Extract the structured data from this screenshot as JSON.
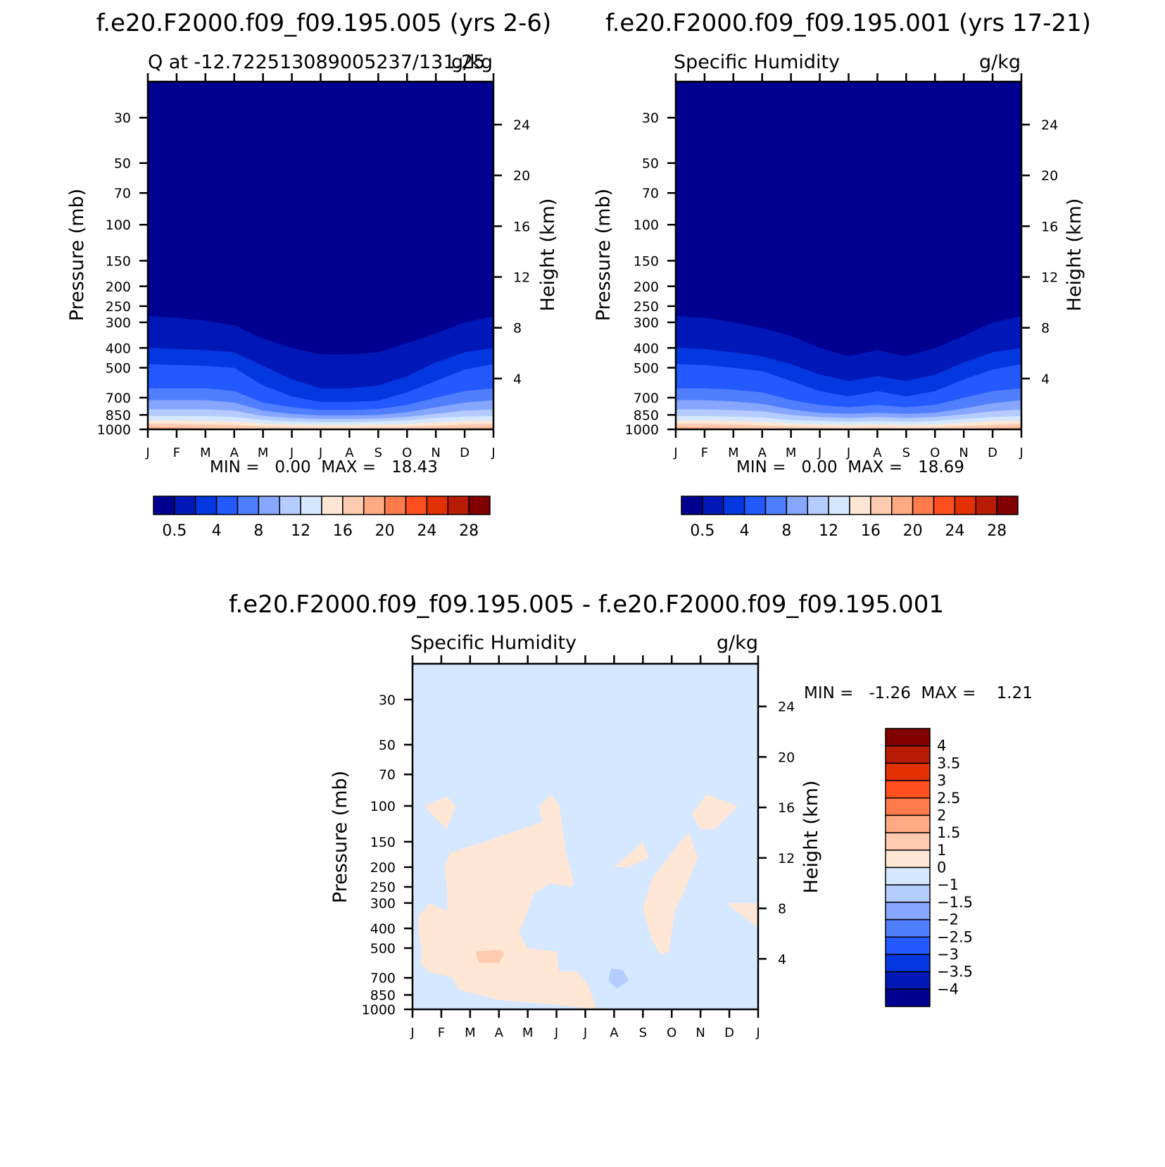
{
  "colors": {
    "q_levels": [
      "#000091",
      "#0018b8",
      "#0337e0",
      "#2359ff",
      "#4f7fff",
      "#86a6ff",
      "#b4ccff",
      "#d5e8ff",
      "#ffe6d5",
      "#ffcbb0",
      "#ffaa82",
      "#ff7b4c",
      "#ff4f1e",
      "#e23000",
      "#b91c05",
      "#800000"
    ],
    "diff_levels": [
      "#000091",
      "#0018b8",
      "#0337e0",
      "#2359ff",
      "#4f7fff",
      "#86a6ff",
      "#b4ccff",
      "#d5e8ff",
      "#ffe6d5",
      "#ffcbb0",
      "#ffaa82",
      "#ff7b4c",
      "#ff4f1e",
      "#e23000",
      "#b91c05",
      "#800000"
    ]
  },
  "chart_data": [
    {
      "type": "heatmap",
      "title": "f.e20.F2000.f09_f09.195.005 (yrs 2-6)",
      "left_label": "Q at -12.722513089005237/131.25",
      "right_label": "g/kg",
      "xlabel": "",
      "ylabel": "Pressure (mb)",
      "y2label": "Height (km)",
      "x_ticks": [
        "J",
        "F",
        "M",
        "A",
        "M",
        "J",
        "J",
        "A",
        "S",
        "O",
        "N",
        "D",
        "J"
      ],
      "y_ticks": [
        30,
        50,
        70,
        100,
        150,
        200,
        250,
        300,
        400,
        500,
        700,
        850,
        1000
      ],
      "y2_ticks": [
        24,
        20,
        16,
        12,
        8,
        4
      ],
      "ylim": [
        20,
        1000
      ],
      "y_scale": "log",
      "contour_levels": [
        0.5,
        4,
        8,
        12,
        16,
        20,
        24,
        28
      ],
      "colorbar_labels": [
        "0.5",
        "4",
        "8",
        "12",
        "16",
        "20",
        "24",
        "28"
      ],
      "stats": "MIN =   0.00  MAX =   18.43",
      "boundaries_pressure": [
        [
          280,
          285,
          295,
          310,
          360,
          400,
          430,
          430,
          420,
          380,
          340,
          300,
          280
        ],
        [
          400,
          405,
          410,
          420,
          490,
          570,
          630,
          630,
          610,
          550,
          470,
          420,
          400
        ],
        [
          480,
          485,
          490,
          500,
          610,
          690,
          735,
          735,
          725,
          660,
          580,
          510,
          480
        ],
        [
          630,
          630,
          630,
          650,
          740,
          780,
          805,
          805,
          795,
          760,
          700,
          650,
          630
        ],
        [
          720,
          720,
          720,
          740,
          810,
          840,
          855,
          855,
          850,
          825,
          780,
          740,
          720
        ],
        [
          800,
          800,
          800,
          810,
          860,
          880,
          890,
          890,
          885,
          870,
          840,
          810,
          800
        ],
        [
          860,
          860,
          860,
          870,
          900,
          915,
          920,
          920,
          915,
          905,
          880,
          865,
          860
        ],
        [
          905,
          905,
          910,
          915,
          935,
          945,
          950,
          950,
          945,
          940,
          925,
          910,
          905
        ],
        [
          940,
          940,
          945,
          950,
          970,
          980,
          985,
          985,
          980,
          975,
          960,
          945,
          940
        ],
        [
          975,
          978,
          985,
          990,
          1000,
          1000,
          1000,
          1000,
          1000,
          1000,
          995,
          985,
          975
        ]
      ]
    },
    {
      "type": "heatmap",
      "title": "f.e20.F2000.f09_f09.195.001 (yrs 17-21)",
      "left_label": "Specific Humidity",
      "right_label": "g/kg",
      "xlabel": "",
      "ylabel": "Pressure (mb)",
      "y2label": "Height (km)",
      "x_ticks": [
        "J",
        "F",
        "M",
        "A",
        "M",
        "J",
        "J",
        "A",
        "S",
        "O",
        "N",
        "D",
        "J"
      ],
      "y_ticks": [
        30,
        50,
        70,
        100,
        150,
        200,
        250,
        300,
        400,
        500,
        700,
        850,
        1000
      ],
      "y2_ticks": [
        24,
        20,
        16,
        12,
        8,
        4
      ],
      "ylim": [
        20,
        1000
      ],
      "y_scale": "log",
      "contour_levels": [
        0.5,
        4,
        8,
        12,
        16,
        20,
        24,
        28
      ],
      "colorbar_labels": [
        "0.5",
        "4",
        "8",
        "12",
        "16",
        "20",
        "24",
        "28"
      ],
      "stats": "MIN =   0.00  MAX =   18.69",
      "boundaries_pressure": [
        [
          280,
          285,
          300,
          320,
          350,
          400,
          440,
          410,
          440,
          400,
          350,
          300,
          280
        ],
        [
          400,
          405,
          420,
          440,
          480,
          540,
          580,
          550,
          580,
          540,
          470,
          420,
          400
        ],
        [
          480,
          485,
          500,
          520,
          580,
          650,
          690,
          650,
          690,
          650,
          570,
          510,
          480
        ],
        [
          630,
          630,
          640,
          660,
          720,
          760,
          780,
          760,
          780,
          760,
          700,
          650,
          630
        ],
        [
          720,
          720,
          730,
          750,
          800,
          830,
          840,
          830,
          840,
          830,
          790,
          745,
          720
        ],
        [
          800,
          800,
          805,
          815,
          850,
          870,
          880,
          870,
          880,
          870,
          845,
          815,
          800
        ],
        [
          860,
          860,
          865,
          875,
          900,
          910,
          915,
          910,
          915,
          910,
          890,
          870,
          860
        ],
        [
          905,
          905,
          910,
          920,
          935,
          945,
          950,
          945,
          950,
          945,
          930,
          912,
          905
        ],
        [
          940,
          940,
          945,
          955,
          970,
          978,
          985,
          978,
          985,
          978,
          965,
          948,
          940
        ],
        [
          975,
          978,
          985,
          992,
          1000,
          1000,
          1000,
          1000,
          1000,
          1000,
          995,
          985,
          975
        ]
      ]
    },
    {
      "type": "heatmap",
      "title": "f.e20.F2000.f09_f09.195.005 - f.e20.F2000.f09_f09.195.001",
      "left_label": "Specific Humidity",
      "right_label": "g/kg",
      "xlabel": "",
      "ylabel": "Pressure (mb)",
      "y2label": "Height (km)",
      "x_ticks": [
        "J",
        "F",
        "M",
        "A",
        "M",
        "J",
        "J",
        "A",
        "S",
        "O",
        "N",
        "D",
        "J"
      ],
      "y_ticks": [
        30,
        50,
        70,
        100,
        150,
        200,
        250,
        300,
        400,
        500,
        700,
        850,
        1000
      ],
      "y2_ticks": [
        24,
        20,
        16,
        12,
        8,
        4
      ],
      "ylim": [
        20,
        1000
      ],
      "y_scale": "log",
      "contour_levels": [
        -4,
        -3.5,
        -3,
        -2.5,
        -2,
        -1.5,
        -1,
        0,
        1,
        1.5,
        2,
        2.5,
        3,
        3.5,
        4
      ],
      "colorbar_labels": [
        "4",
        "3.5",
        "3",
        "2.5",
        "2",
        "1.5",
        "1",
        "0",
        "−1",
        "−1.5",
        "−2",
        "−2.5",
        "−3",
        "−3.5",
        "−4"
      ],
      "stats": "MIN =   -1.26  MAX =    1.21",
      "background_level_index": 7,
      "regions": [
        {
          "level_index": 8,
          "points": [
            [
              0.4,
              100
            ],
            [
              1.2,
              90
            ],
            [
              1.5,
              100
            ],
            [
              1.2,
              130
            ],
            [
              0.8,
              115
            ],
            [
              0.4,
              100
            ]
          ]
        },
        {
          "level_index": 8,
          "points": [
            [
              1.1,
              200
            ],
            [
              1.3,
              170
            ],
            [
              2.5,
              150
            ],
            [
              4.5,
              120
            ],
            [
              4.4,
              100
            ],
            [
              4.8,
              88
            ],
            [
              5.1,
              100
            ],
            [
              5.3,
              160
            ],
            [
              5.6,
              240
            ],
            [
              5.5,
              250
            ],
            [
              4.8,
              240
            ],
            [
              4.2,
              270
            ],
            [
              4.0,
              330
            ],
            [
              3.7,
              420
            ],
            [
              4.0,
              500
            ],
            [
              5.0,
              520
            ],
            [
              5.1,
              650
            ],
            [
              5.7,
              650
            ],
            [
              6.1,
              760
            ],
            [
              6.4,
              1000
            ],
            [
              5.0,
              950
            ],
            [
              3.0,
              900
            ],
            [
              1.6,
              800
            ],
            [
              1.4,
              700
            ],
            [
              0.5,
              650
            ],
            [
              0.3,
              600
            ],
            [
              0.3,
              500
            ],
            [
              0.2,
              400
            ],
            [
              0.2,
              350
            ],
            [
              0.6,
              300
            ],
            [
              1.2,
              330
            ],
            [
              1.2,
              250
            ],
            [
              1.1,
              200
            ]
          ]
        },
        {
          "level_index": 9,
          "points": [
            [
              2.2,
              520
            ],
            [
              3.0,
              510
            ],
            [
              3.2,
              530
            ],
            [
              3.0,
              590
            ],
            [
              2.3,
              590
            ],
            [
              2.2,
              520
            ]
          ]
        },
        {
          "level_index": 8,
          "points": [
            [
              7.0,
              200
            ],
            [
              8.0,
              150
            ],
            [
              8.2,
              180
            ],
            [
              7.5,
              200
            ],
            [
              7.0,
              200
            ]
          ]
        },
        {
          "level_index": 8,
          "points": [
            [
              9.3,
              150
            ],
            [
              9.6,
              135
            ],
            [
              9.9,
              180
            ],
            [
              9.5,
              250
            ],
            [
              9.1,
              330
            ],
            [
              9.0,
              420
            ],
            [
              8.9,
              520
            ],
            [
              8.6,
              540
            ],
            [
              8.3,
              450
            ],
            [
              8.0,
              320
            ],
            [
              8.3,
              230
            ],
            [
              9.3,
              150
            ]
          ]
        },
        {
          "level_index": 8,
          "points": [
            [
              9.7,
              110
            ],
            [
              10.2,
              88
            ],
            [
              11.3,
              100
            ],
            [
              10.5,
              130
            ],
            [
              10.0,
              130
            ],
            [
              9.7,
              110
            ]
          ]
        },
        {
          "level_index": 8,
          "points": [
            [
              11.0,
              300
            ],
            [
              12.0,
              300
            ],
            [
              12.0,
              400
            ],
            [
              11.5,
              350
            ],
            [
              11.0,
              310
            ],
            [
              11.0,
              300
            ]
          ]
        },
        {
          "level_index": 6,
          "points": [
            [
              6.9,
              630
            ],
            [
              7.3,
              640
            ],
            [
              7.5,
              720
            ],
            [
              7.1,
              790
            ],
            [
              6.8,
              720
            ],
            [
              6.9,
              630
            ]
          ]
        }
      ]
    }
  ]
}
